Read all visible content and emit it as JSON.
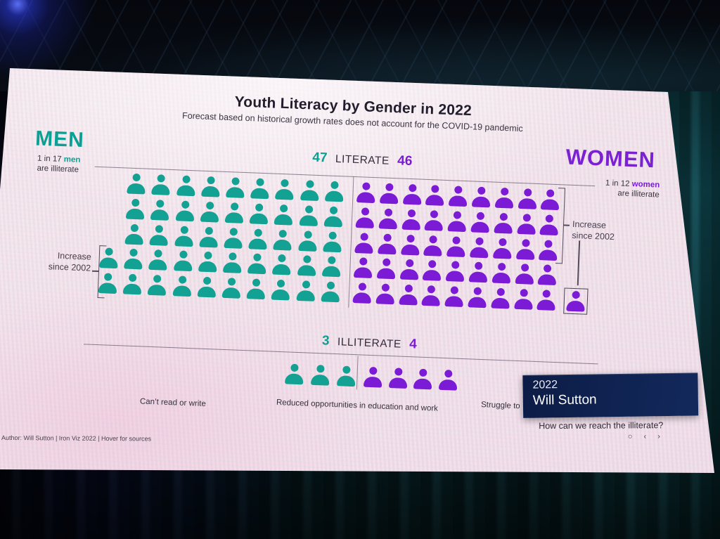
{
  "slide": {
    "title": "Youth Literacy by Gender in 2022",
    "subtitle": "Forecast based on historical growth rates does not account for the COVID-19 pandemic",
    "men": {
      "label": "MEN",
      "ratio_prefix": "1 in 17",
      "ratio_bold": "men",
      "ratio_suffix": "are illiterate"
    },
    "women": {
      "label": "WOMEN",
      "ratio_prefix": "1 in 12",
      "ratio_bold": "women",
      "ratio_suffix": "are illiterate"
    },
    "literate": {
      "men_value": "47",
      "label": "LITERATE",
      "women_value": "46"
    },
    "illiterate": {
      "men_value": "3",
      "label": "ILLITERATE",
      "women_value": "4"
    },
    "annotation_left": {
      "line1": "Increase",
      "line2": "since 2002"
    },
    "annotation_right": {
      "line1": "Increase",
      "line2": "since 2002"
    },
    "bottom_labels": {
      "left": "Can’t read or write",
      "middle": "Reduced opportunities in education and work",
      "right": "Struggle to"
    },
    "story_box": {
      "year": "2022",
      "author": "Will Sutton"
    },
    "story_nav": {
      "question": "How can we reach the illiterate?",
      "dot": "○",
      "prev": "‹",
      "next": "›"
    },
    "footer": "Author: Will Sutton | Iron Viz 2022 | Hover for sources"
  },
  "colors": {
    "men": "#12a192",
    "women": "#7b1bd6",
    "navy": "#0e2050"
  },
  "chart_data": {
    "type": "pictograph",
    "title": "Youth Literacy by Gender in 2022",
    "subtitle": "Forecast based on historical growth rates does not account for the COVID-19 pandemic",
    "unit_note": "each person icon = 1",
    "groups": [
      {
        "name": "Literate men",
        "value": 47,
        "color": "#12a192",
        "rows": [
          [
            1,
            9
          ],
          [
            1,
            9
          ],
          [
            1,
            9
          ],
          [
            0,
            10
          ],
          [
            0,
            10
          ]
        ]
      },
      {
        "name": "Literate women",
        "value": 46,
        "color": "#7b1bd6",
        "rows": [
          [
            0,
            9
          ],
          [
            0,
            9
          ],
          [
            0,
            9
          ],
          [
            0,
            9
          ],
          [
            0,
            10
          ]
        ],
        "highlight_last": true
      },
      {
        "name": "Illiterate men",
        "value": 3,
        "color": "#12a192"
      },
      {
        "name": "Illiterate women",
        "value": 4,
        "color": "#7b1bd6"
      }
    ],
    "facts": [
      "1 in 17 men are illiterate",
      "1 in 12 women are illiterate",
      "Men: increase since 2002",
      "Women: increase since 2002"
    ],
    "legend_position": "none",
    "grid": false
  }
}
